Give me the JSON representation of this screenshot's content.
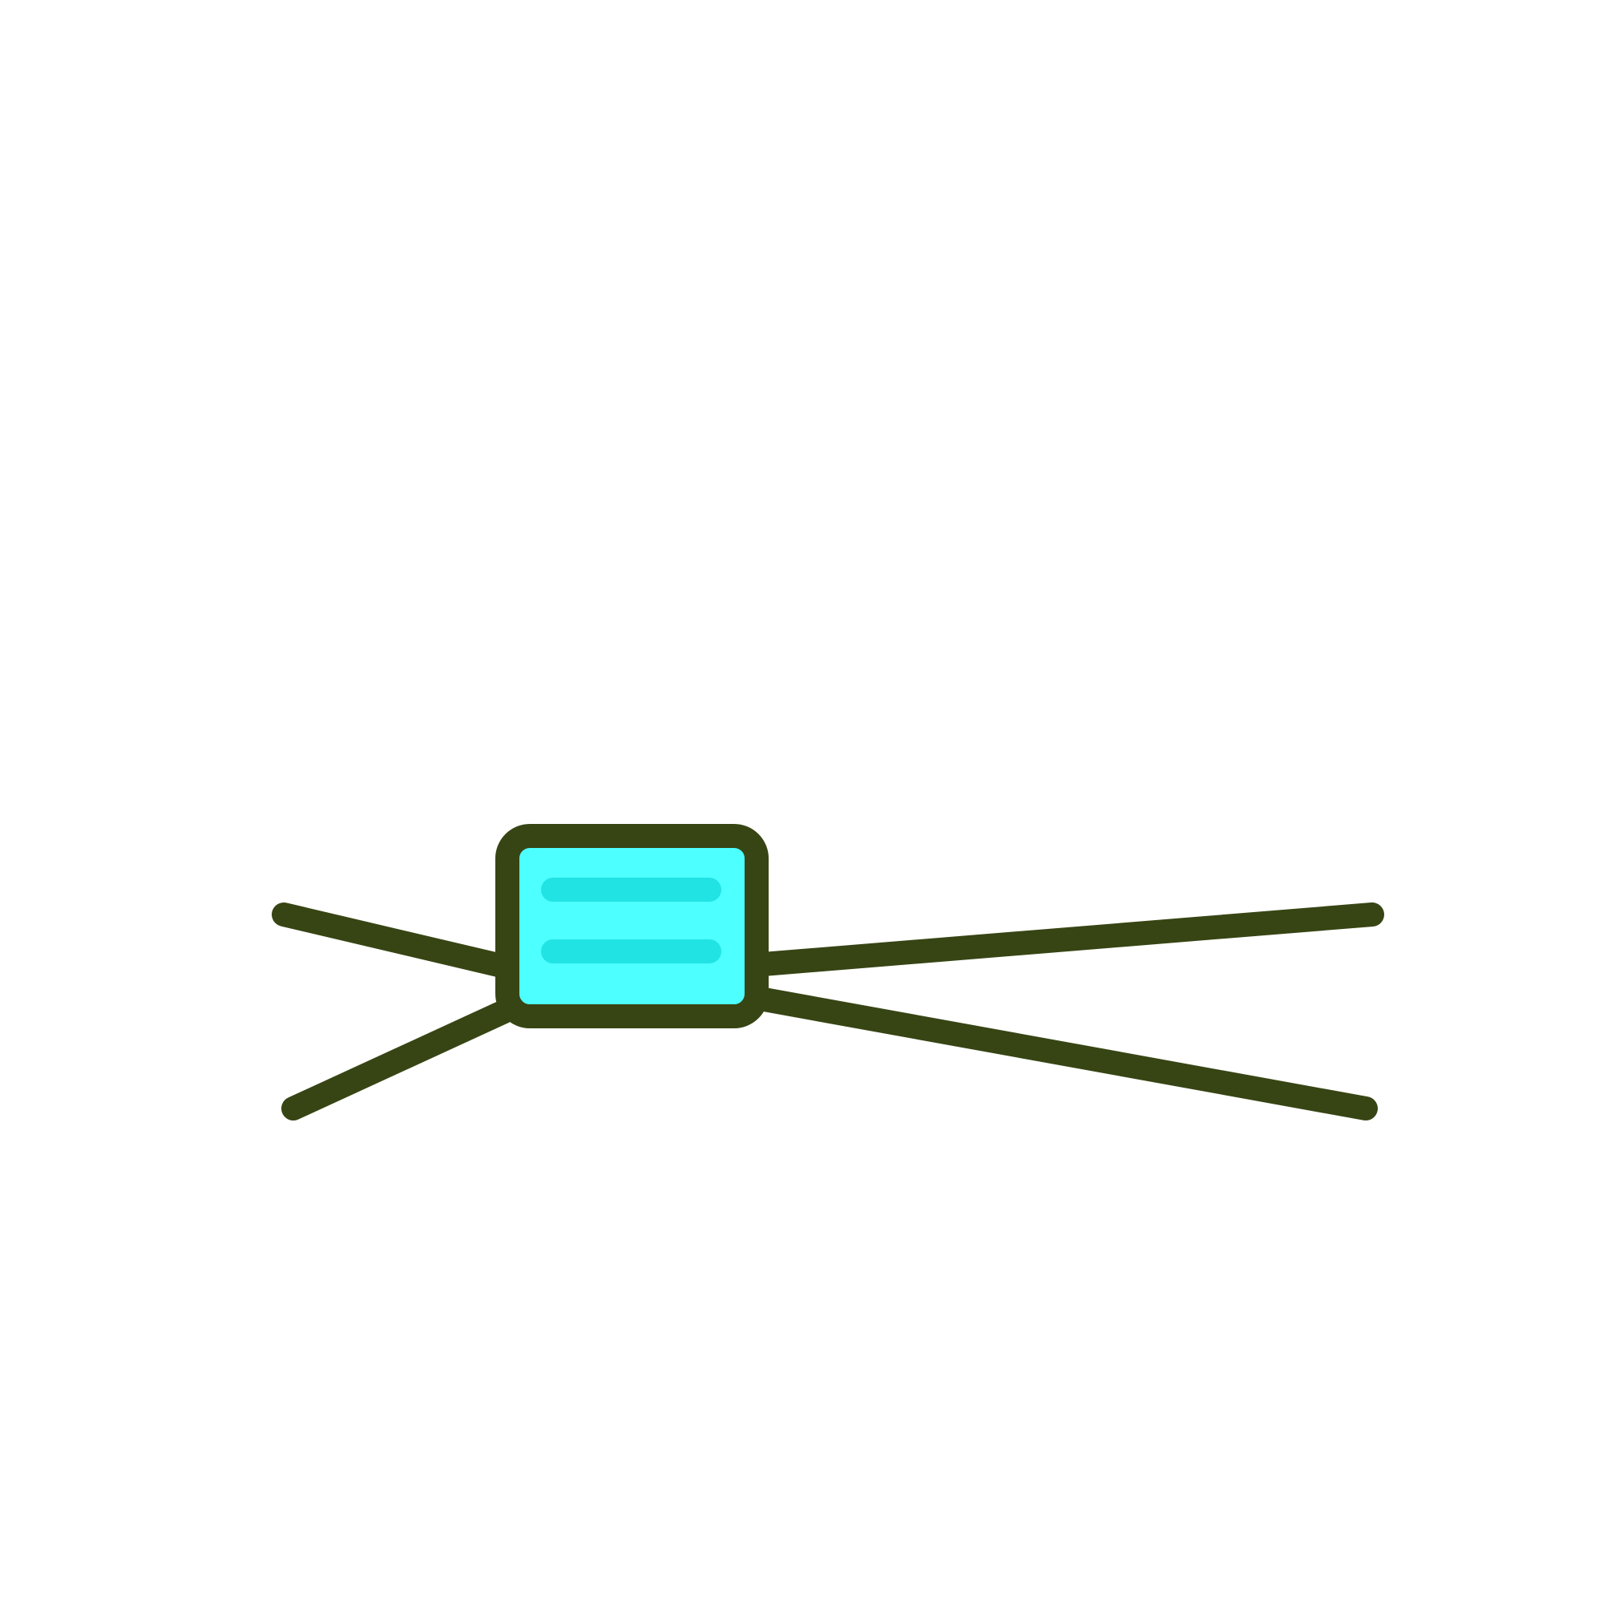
{
  "icon": {
    "name": "mask-icon",
    "colors": {
      "background": "#ffffff",
      "outline": "#374514",
      "mask_fill": "#4dffff",
      "pleat_lines": "#22e3e3"
    }
  }
}
